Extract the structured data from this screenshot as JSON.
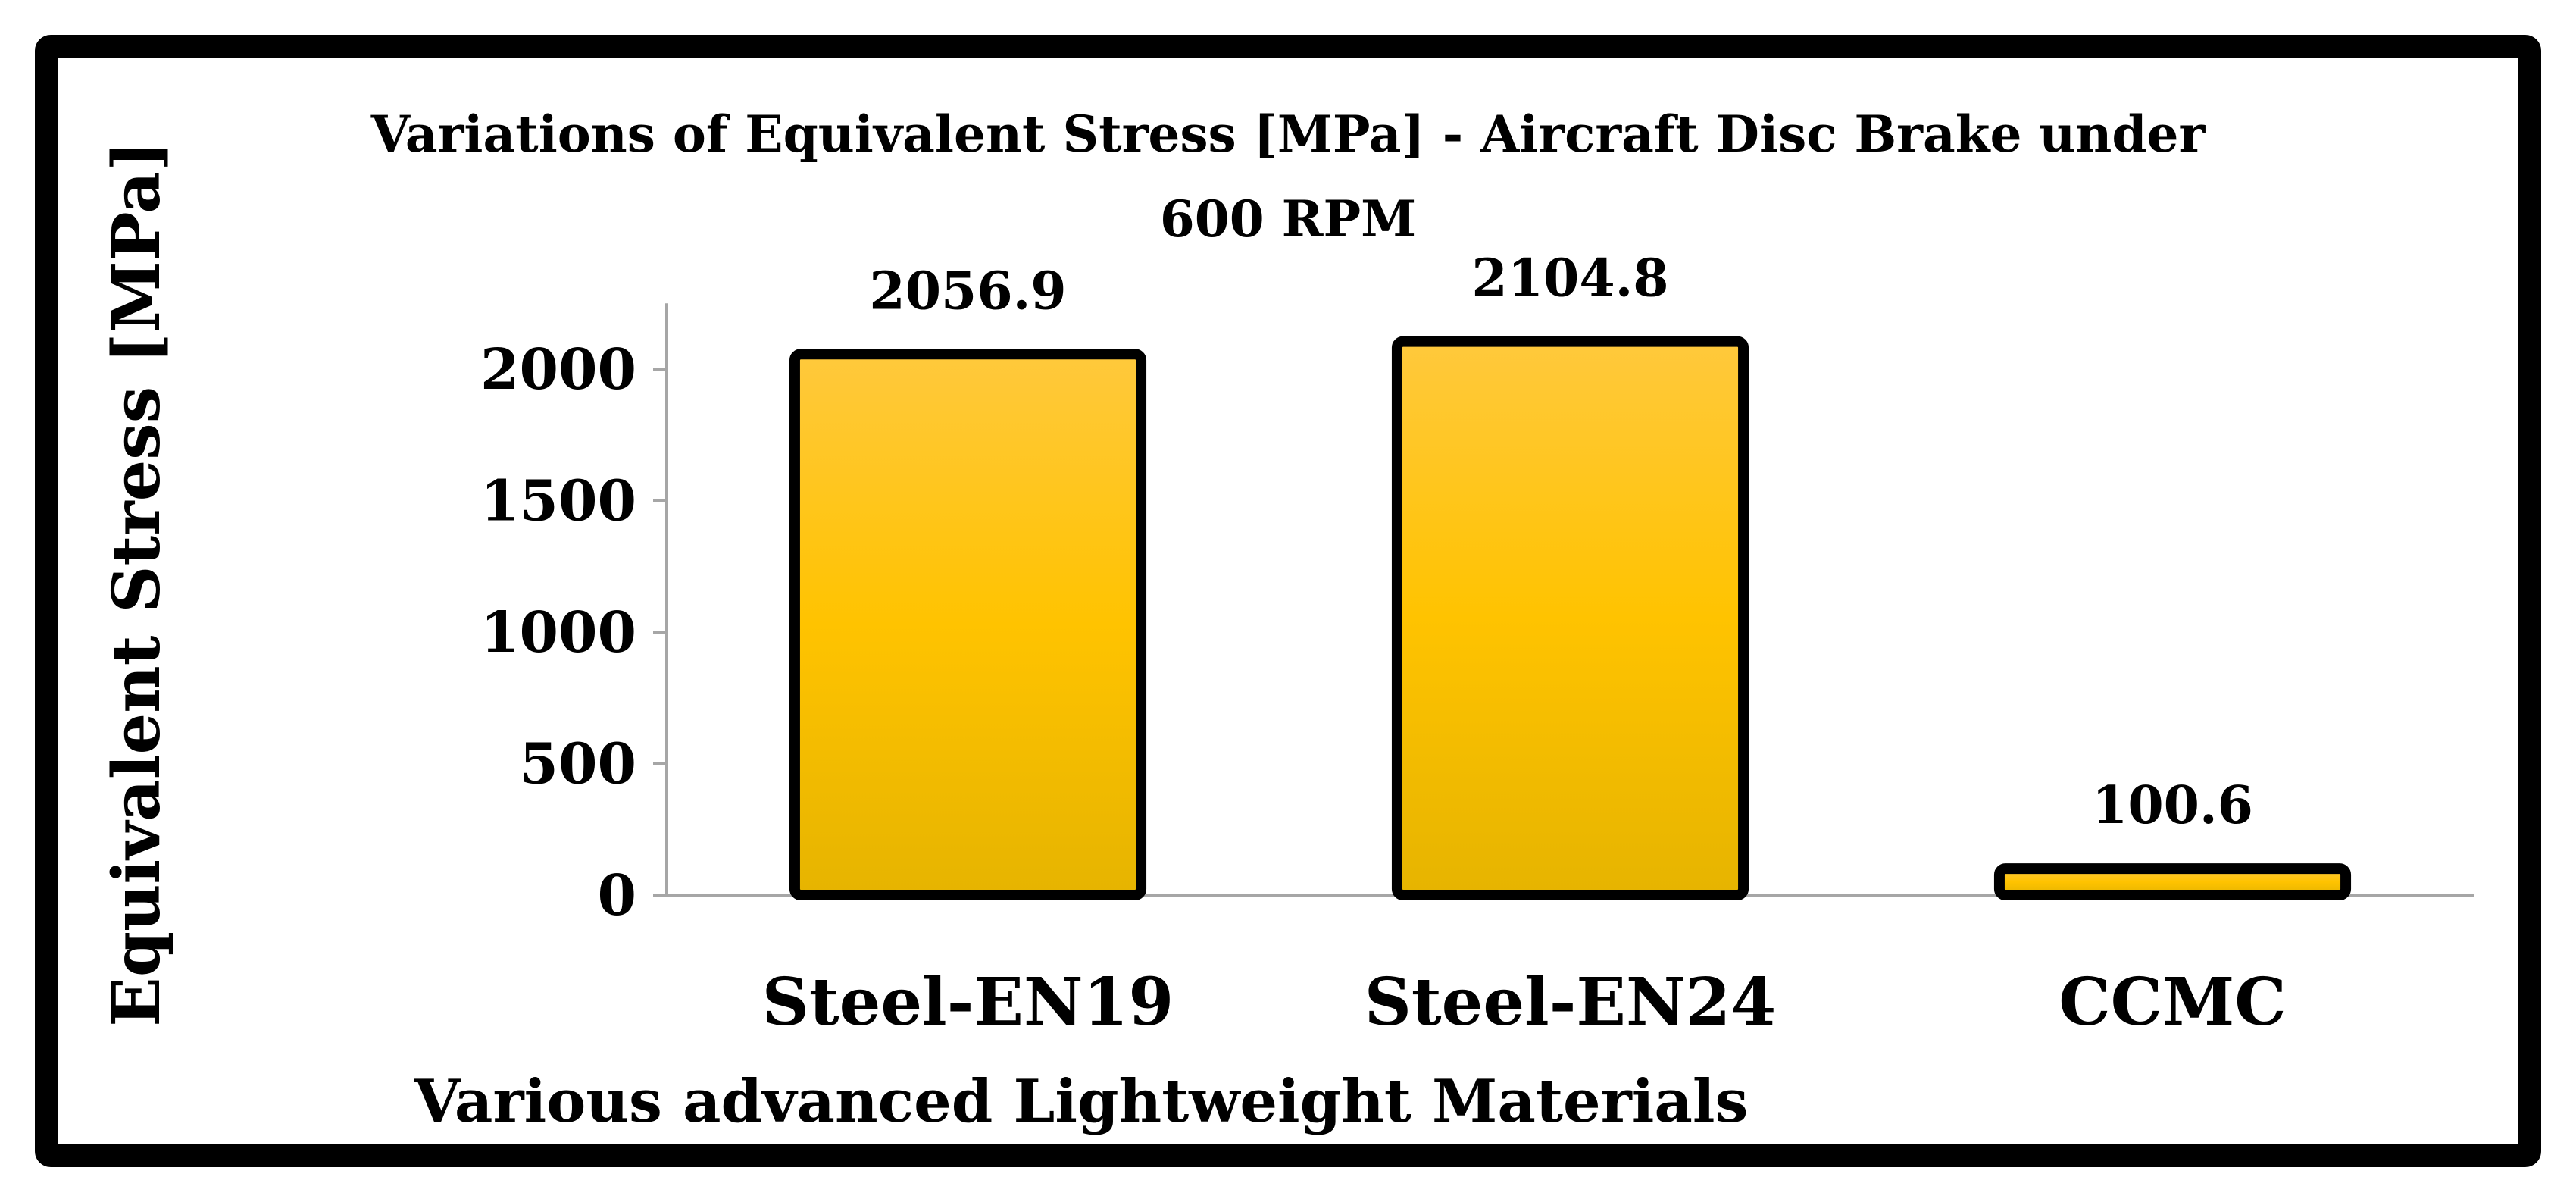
{
  "chart_data": {
    "type": "bar",
    "title_lines": [
      "Variations of Equivalent Stress [MPa] - Aircraft Disc Brake under",
      "600 RPM"
    ],
    "xlabel": "Various advanced Lightweight Materials",
    "ylabel": "Equivalent Stress [MPa]",
    "categories": [
      "Steel-EN19",
      "Steel-EN24",
      "CCMC"
    ],
    "values": [
      2056.9,
      2104.8,
      100.6
    ],
    "data_labels": [
      "2056.9",
      "2104.8",
      "100.6"
    ],
    "ylim": [
      0,
      2250
    ],
    "yticks": [
      0,
      500,
      1000,
      1500,
      2000
    ],
    "ytick_labels": [
      "0",
      "500",
      "1000",
      "1500",
      "2000"
    ],
    "grid": false,
    "legend": "none",
    "colors": {
      "bar_top": "#ffc93c",
      "bar_mid": "#ffc300",
      "bar_bottom": "#e6b400",
      "bar_border": "#000000",
      "axis": "#a6a6a6",
      "frame": "#000000"
    }
  }
}
